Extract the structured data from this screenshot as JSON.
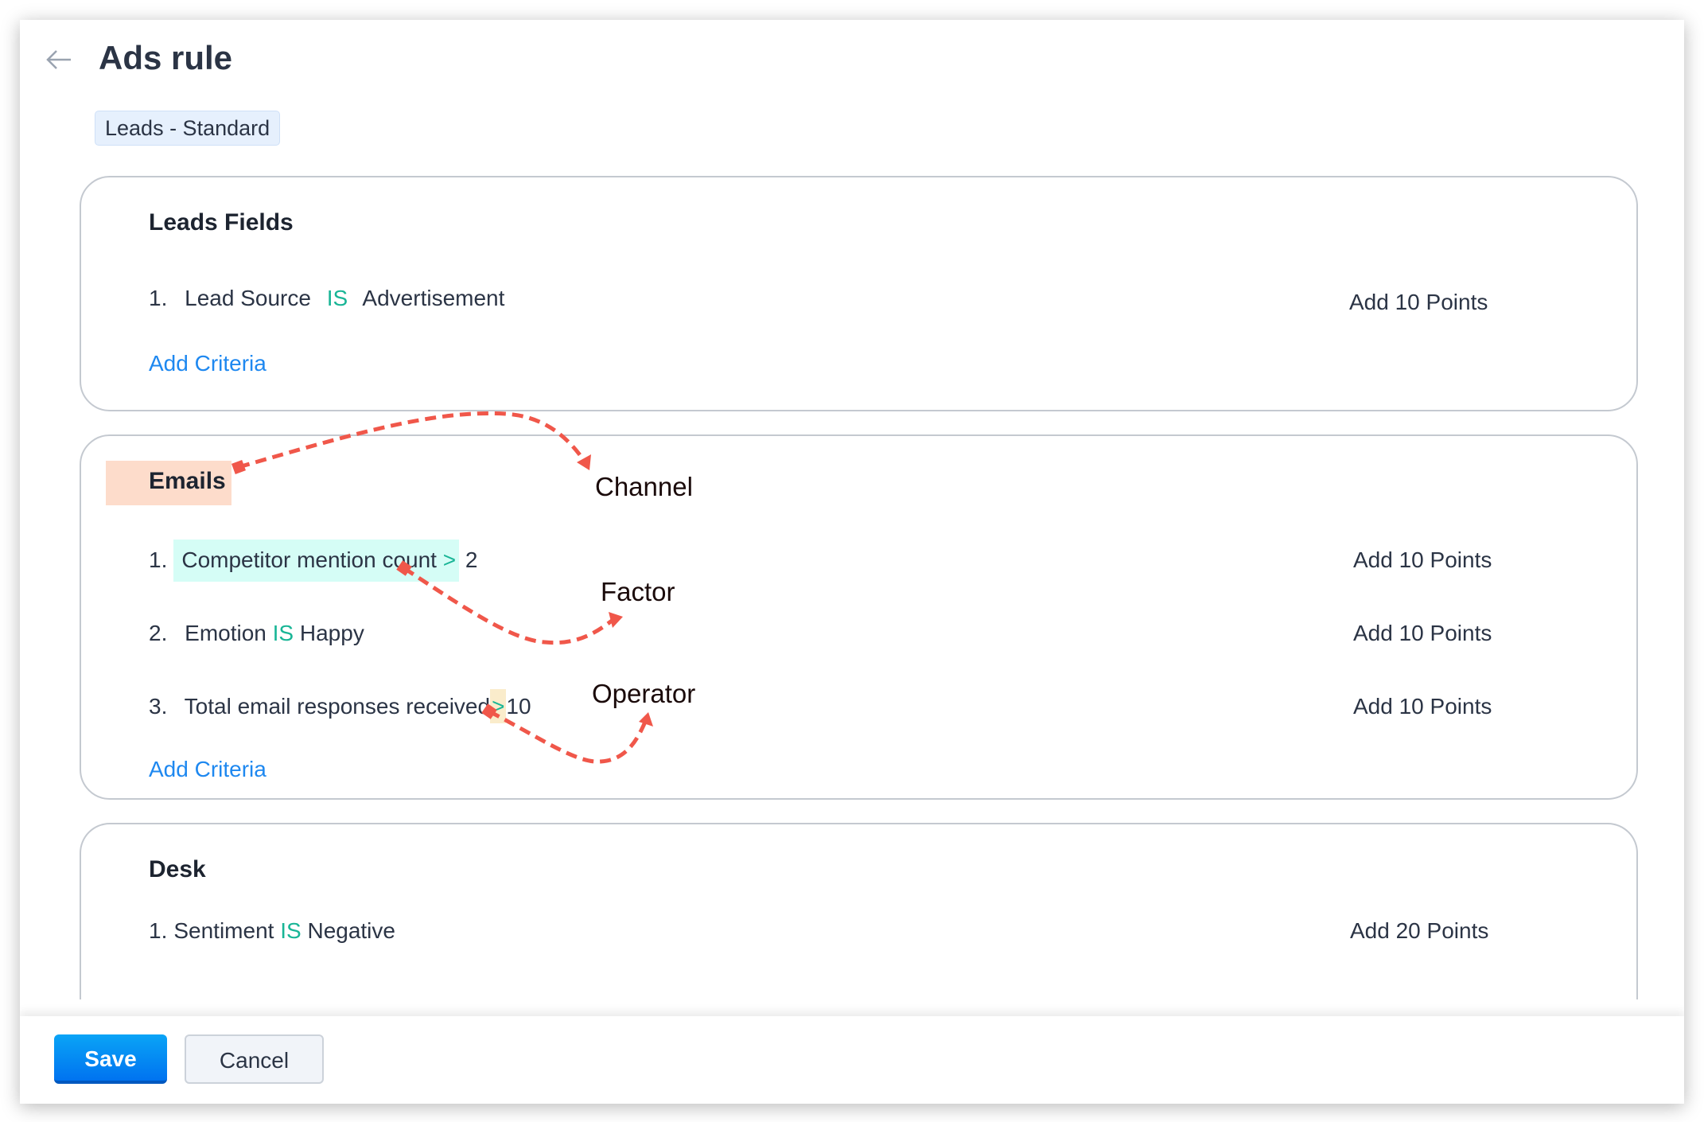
{
  "header": {
    "title": "Ads rule",
    "badge": "Leads - Standard",
    "back_icon": "arrow-left-icon"
  },
  "sections": [
    {
      "title": "Leads Fields",
      "criteria": [
        {
          "num": "1.",
          "field": "Lead Source",
          "op": "IS",
          "value": "Advertisement",
          "points": "Add 10 Points"
        }
      ],
      "add_label": "Add Criteria"
    },
    {
      "title": "Emails",
      "criteria": [
        {
          "num": "1.",
          "field": "Competitor mention count",
          "op": ">",
          "value": "2",
          "points": "Add 10 Points"
        },
        {
          "num": "2.",
          "field": "Emotion",
          "op": "IS",
          "value": "Happy",
          "points": "Add 10 Points"
        },
        {
          "num": "3.",
          "field": "Total email responses received",
          "op": ">",
          "value": "10",
          "points": "Add 10 Points"
        }
      ],
      "add_label": "Add Criteria"
    },
    {
      "title": "Desk",
      "criteria": [
        {
          "num": "1.",
          "field": "Sentiment",
          "op": "IS",
          "value": "Negative",
          "points": "Add 20 Points"
        }
      ]
    }
  ],
  "annotations": {
    "channel": "Channel",
    "factor": "Factor",
    "operator": "Operator",
    "color": "#f0574a"
  },
  "footer": {
    "save": "Save",
    "cancel": "Cancel"
  },
  "colors": {
    "operator": "#19b596",
    "link": "#1e88f0",
    "primary": "#0a8cf2"
  }
}
